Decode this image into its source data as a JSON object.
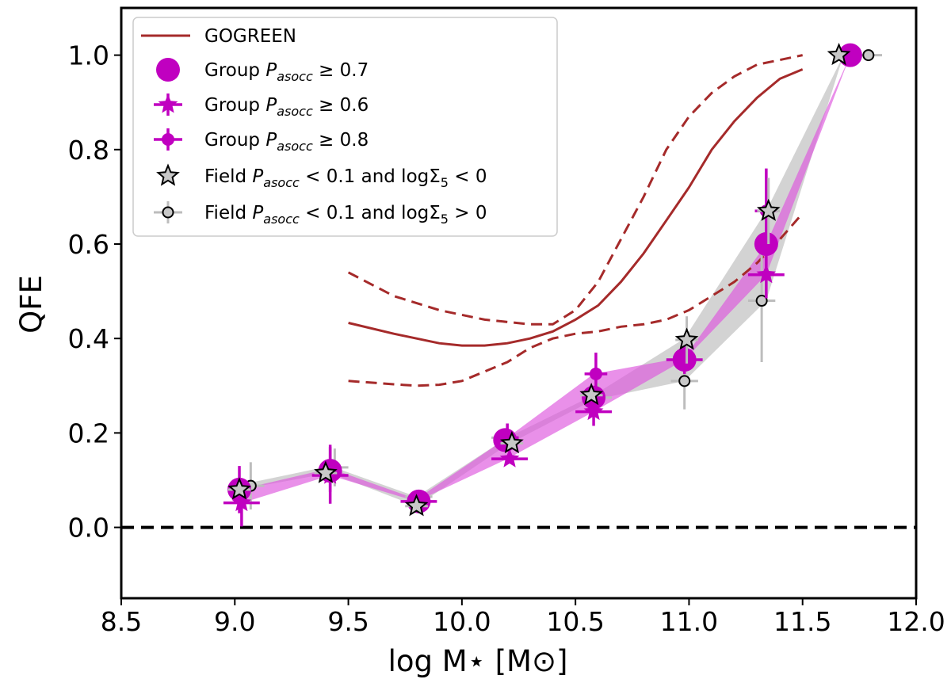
{
  "chart_data": {
    "type": "scatter",
    "xlabel": "log M⋆ [M⊙]",
    "ylabel": "QFE",
    "xlim": [
      8.5,
      12.0
    ],
    "ylim": [
      -0.15,
      1.1
    ],
    "xticks": [
      "8.5",
      "9.0",
      "9.5",
      "10.0",
      "10.5",
      "11.0",
      "11.5",
      "12.0"
    ],
    "yticks": [
      "0.0",
      "0.2",
      "0.4",
      "0.6",
      "0.8",
      "1.0"
    ],
    "reference_line": {
      "y": 0.0,
      "style": "dashed",
      "color": "#000000"
    },
    "legend": {
      "placement": "top-left",
      "entries": [
        {
          "key": "gogreen",
          "label": "GOGREEN"
        },
        {
          "key": "g07",
          "label_prefix": "Group",
          "label_sym": "P",
          "label_sub": "asocc",
          "label_suffix": "≥ 0.7"
        },
        {
          "key": "g06",
          "label_prefix": "Group",
          "label_sym": "P",
          "label_sub": "asocc",
          "label_suffix": "≥ 0.6"
        },
        {
          "key": "g08",
          "label_prefix": "Group",
          "label_sym": "P",
          "label_sub": "asocc",
          "label_suffix": "≥ 0.8"
        },
        {
          "key": "fneg",
          "label_prefix": "Field",
          "label_sym": "P",
          "label_sub": "asocc",
          "label_suffix": "< 0.1 and logΣ",
          "label_sub2": "5",
          "label_tail": "< 0"
        },
        {
          "key": "fpos",
          "label_prefix": "Field",
          "label_sym": "P",
          "label_sub": "asocc",
          "label_suffix": "< 0.1 and logΣ",
          "label_sub2": "5",
          "label_tail": "> 0"
        }
      ]
    },
    "gogreen": {
      "color": "#a52a2a",
      "median": {
        "x": [
          9.5,
          9.7,
          9.9,
          10.0,
          10.1,
          10.2,
          10.3,
          10.4,
          10.5,
          10.6,
          10.7,
          10.8,
          10.9,
          11.0,
          11.1,
          11.2,
          11.3,
          11.4,
          11.5
        ],
        "y": [
          0.433,
          0.41,
          0.39,
          0.385,
          0.385,
          0.39,
          0.4,
          0.415,
          0.44,
          0.47,
          0.52,
          0.58,
          0.65,
          0.72,
          0.8,
          0.86,
          0.91,
          0.95,
          0.97
        ]
      },
      "upper": {
        "x": [
          9.5,
          9.7,
          9.9,
          10.1,
          10.3,
          10.4,
          10.5,
          10.6,
          10.7,
          10.8,
          10.9,
          11.0,
          11.1,
          11.2,
          11.3,
          11.4,
          11.5
        ],
        "y": [
          0.54,
          0.49,
          0.46,
          0.44,
          0.43,
          0.43,
          0.46,
          0.52,
          0.61,
          0.7,
          0.8,
          0.87,
          0.92,
          0.955,
          0.98,
          0.99,
          1.0
        ]
      },
      "lower": {
        "x": [
          9.5,
          9.7,
          9.8,
          9.9,
          10.0,
          10.1,
          10.2,
          10.3,
          10.4,
          10.5,
          10.6,
          10.7,
          10.8,
          10.9,
          11.0,
          11.1,
          11.2,
          11.3,
          11.4,
          11.5
        ],
        "y": [
          0.31,
          0.303,
          0.3,
          0.302,
          0.31,
          0.33,
          0.35,
          0.38,
          0.4,
          0.41,
          0.415,
          0.425,
          0.43,
          0.44,
          0.46,
          0.49,
          0.52,
          0.56,
          0.61,
          0.665
        ]
      }
    },
    "group_band": {
      "color": "#dd55dd",
      "x": [
        9.02,
        9.42,
        9.8,
        10.2,
        10.58,
        10.98,
        11.34,
        11.71
      ],
      "y_low": [
        0.05,
        0.11,
        0.055,
        0.145,
        0.245,
        0.355,
        0.535,
        1.0
      ],
      "y_high": [
        0.08,
        0.125,
        0.06,
        0.19,
        0.325,
        0.36,
        0.6,
        1.0
      ]
    },
    "field_band": {
      "color": "#c8c8c8",
      "x": [
        9.02,
        9.42,
        9.8,
        10.2,
        10.58,
        10.98,
        11.34,
        11.68
      ],
      "y_low": [
        0.08,
        0.115,
        0.045,
        0.175,
        0.27,
        0.31,
        0.48,
        1.0
      ],
      "y_high": [
        0.09,
        0.13,
        0.065,
        0.19,
        0.28,
        0.4,
        0.67,
        1.0
      ]
    },
    "series": [
      {
        "key": "g07",
        "name": "Group P_asocc ≥ 0.7",
        "marker": "circle",
        "color": "#c000c0",
        "points": [
          {
            "x": 9.02,
            "y": 0.08,
            "xerr": 0.05,
            "yerr": 0.0
          },
          {
            "x": 9.42,
            "y": 0.12,
            "xerr": 0.05,
            "yerr": 0.0
          },
          {
            "x": 9.81,
            "y": 0.055,
            "xerr": 0.05,
            "yerr": 0.0
          },
          {
            "x": 10.19,
            "y": 0.185,
            "xerr": 0.05,
            "yerr": 0.0
          },
          {
            "x": 10.58,
            "y": 0.275,
            "xerr": 0.05,
            "yerr": 0.0
          },
          {
            "x": 10.98,
            "y": 0.355,
            "xerr": 0.05,
            "yerr": 0.0
          },
          {
            "x": 11.34,
            "y": 0.6,
            "xerr": 0.05,
            "yerr": 0.0
          },
          {
            "x": 11.71,
            "y": 1.0,
            "xerr": 0.0,
            "yerr": 0.0
          }
        ]
      },
      {
        "key": "g06",
        "name": "Group P_asocc ≥ 0.6",
        "marker": "star",
        "color": "#c000c0",
        "points": [
          {
            "x": 9.03,
            "y": 0.052,
            "xerr": 0.08,
            "yerr": 0.05
          },
          {
            "x": 9.42,
            "y": 0.11,
            "xerr": 0.08,
            "yerr": 0.06
          },
          {
            "x": 9.81,
            "y": 0.055,
            "xerr": 0.08,
            "yerr": 0.0
          },
          {
            "x": 10.21,
            "y": 0.145,
            "xerr": 0.08,
            "yerr": 0.0
          },
          {
            "x": 10.58,
            "y": 0.245,
            "xerr": 0.08,
            "yerr": 0.03
          },
          {
            "x": 10.98,
            "y": 0.355,
            "xerr": 0.08,
            "yerr": 0.03
          },
          {
            "x": 11.34,
            "y": 0.535,
            "xerr": 0.08,
            "yerr": 0.05
          },
          {
            "x": 11.71,
            "y": 1.0,
            "xerr": 0.0,
            "yerr": 0.0
          }
        ]
      },
      {
        "key": "g08",
        "name": "Group P_asocc ≥ 0.8",
        "marker": "circle-small",
        "color": "#c000c0",
        "points": [
          {
            "x": 9.02,
            "y": 0.08,
            "xerr": 0.05,
            "yerr": 0.05
          },
          {
            "x": 9.42,
            "y": 0.125,
            "xerr": 0.05,
            "yerr": 0.05
          },
          {
            "x": 9.81,
            "y": 0.06,
            "xerr": 0.05,
            "yerr": 0.0
          },
          {
            "x": 10.2,
            "y": 0.19,
            "xerr": 0.05,
            "yerr": 0.03
          },
          {
            "x": 10.59,
            "y": 0.325,
            "xerr": 0.05,
            "yerr": 0.045
          },
          {
            "x": 10.98,
            "y": 0.36,
            "xerr": 0.05,
            "yerr": 0.0
          },
          {
            "x": 11.34,
            "y": 0.67,
            "xerr": 0.05,
            "yerr": 0.09
          },
          {
            "x": 11.71,
            "y": 1.0,
            "xerr": 0.0,
            "yerr": 0.0
          }
        ]
      },
      {
        "key": "fneg",
        "name": "Field P_asocc < 0.1 and logΣ5 < 0",
        "marker": "star-open",
        "color": "#c8c8c8",
        "points": [
          {
            "x": 9.02,
            "y": 0.08,
            "xerr": 0.05,
            "yerr": 0.0
          },
          {
            "x": 9.4,
            "y": 0.115,
            "xerr": 0.05,
            "yerr": 0.0
          },
          {
            "x": 9.8,
            "y": 0.045,
            "xerr": 0.05,
            "yerr": 0.0
          },
          {
            "x": 10.22,
            "y": 0.178,
            "xerr": 0.05,
            "yerr": 0.0
          },
          {
            "x": 10.57,
            "y": 0.28,
            "xerr": 0.05,
            "yerr": 0.0
          },
          {
            "x": 10.99,
            "y": 0.397,
            "xerr": 0.05,
            "yerr": 0.05
          },
          {
            "x": 11.35,
            "y": 0.67,
            "xerr": 0.05,
            "yerr": 0.07
          },
          {
            "x": 11.66,
            "y": 1.0,
            "xerr": 0.0,
            "yerr": 0.0
          }
        ]
      },
      {
        "key": "fpos",
        "name": "Field P_asocc < 0.1 and logΣ5 > 0",
        "marker": "circle-open",
        "color": "#c8c8c8",
        "points": [
          {
            "x": 9.07,
            "y": 0.088,
            "xerr": 0.06,
            "yerr": 0.05
          },
          {
            "x": 9.44,
            "y": 0.127,
            "xerr": 0.06,
            "yerr": 0.04
          },
          {
            "x": 9.81,
            "y": 0.065,
            "xerr": 0.06,
            "yerr": 0.0
          },
          {
            "x": 10.19,
            "y": 0.19,
            "xerr": 0.06,
            "yerr": 0.02
          },
          {
            "x": 10.6,
            "y": 0.275,
            "xerr": 0.06,
            "yerr": 0.03
          },
          {
            "x": 10.98,
            "y": 0.31,
            "xerr": 0.06,
            "yerr": 0.06
          },
          {
            "x": 11.32,
            "y": 0.48,
            "xerr": 0.06,
            "yerr": 0.13
          },
          {
            "x": 11.79,
            "y": 1.0,
            "xerr": 0.06,
            "yerr": 0.0
          }
        ]
      }
    ]
  }
}
